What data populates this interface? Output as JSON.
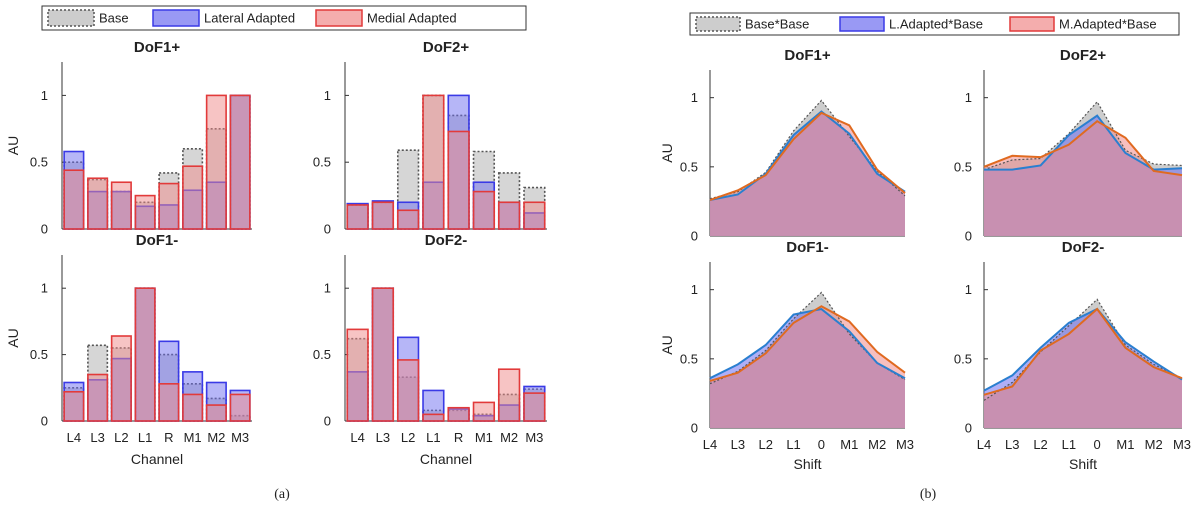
{
  "colors": {
    "base_fill": "#c8c8c8",
    "base_edge": "#555555",
    "lateral_fill": "#6e6ef0",
    "lateral_edge": "#3a3ae6",
    "medial_fill": "#f08a8a",
    "medial_edge": "#e23a3a",
    "overlap_fill": "#9a5a8e",
    "lateral_line": "#2a7fd0",
    "medial_line": "#e06a20"
  },
  "chart_data": [
    {
      "panel": "a",
      "caption": "(a)",
      "type": "bar",
      "legend": [
        "Base",
        "Lateral Adapted",
        "Medial Adapted"
      ],
      "legend_position": "top",
      "categories": [
        "L4",
        "L3",
        "L2",
        "L1",
        "R",
        "M1",
        "M2",
        "M3"
      ],
      "y_ticks": [
        "0",
        "0.5",
        "1"
      ],
      "ylim": [
        0,
        1.25
      ],
      "subplots": [
        {
          "title": "DoF1+",
          "ylabel": "AU",
          "xlabel": "",
          "series": [
            {
              "name": "Base",
              "values": [
                0.5,
                0.37,
                0.28,
                0.2,
                0.42,
                0.6,
                0.75,
                1.0
              ]
            },
            {
              "name": "Lateral Adapted",
              "values": [
                0.58,
                0.28,
                0.28,
                0.17,
                0.18,
                0.29,
                0.35,
                1.0
              ]
            },
            {
              "name": "Medial Adapted",
              "values": [
                0.44,
                0.38,
                0.35,
                0.25,
                0.34,
                0.47,
                1.0,
                1.0
              ]
            }
          ]
        },
        {
          "title": "DoF2+",
          "ylabel": "",
          "xlabel": "",
          "series": [
            {
              "name": "Base",
              "values": [
                0.18,
                0.2,
                0.59,
                1.0,
                0.85,
                0.58,
                0.42,
                0.31
              ]
            },
            {
              "name": "Lateral Adapted",
              "values": [
                0.19,
                0.21,
                0.2,
                0.35,
                1.0,
                0.35,
                0.2,
                0.12
              ]
            },
            {
              "name": "Medial Adapted",
              "values": [
                0.18,
                0.2,
                0.14,
                1.0,
                0.73,
                0.28,
                0.2,
                0.2
              ]
            }
          ]
        },
        {
          "title": "DoF1-",
          "ylabel": "AU",
          "xlabel": "Channel",
          "series": [
            {
              "name": "Base",
              "values": [
                0.25,
                0.57,
                0.55,
                1.0,
                0.5,
                0.28,
                0.17,
                0.04
              ]
            },
            {
              "name": "Lateral Adapted",
              "values": [
                0.29,
                0.31,
                0.47,
                1.0,
                0.6,
                0.37,
                0.29,
                0.23
              ]
            },
            {
              "name": "Medial Adapted",
              "values": [
                0.22,
                0.35,
                0.64,
                1.0,
                0.28,
                0.2,
                0.12,
                0.2
              ]
            }
          ]
        },
        {
          "title": "DoF2-",
          "ylabel": "",
          "xlabel": "Channel",
          "series": [
            {
              "name": "Base",
              "values": [
                0.62,
                1.0,
                0.33,
                0.08,
                0.08,
                0.05,
                0.2,
                0.24
              ]
            },
            {
              "name": "Lateral Adapted",
              "values": [
                0.37,
                1.0,
                0.63,
                0.23,
                0.09,
                0.04,
                0.12,
                0.26
              ]
            },
            {
              "name": "Medial Adapted",
              "values": [
                0.69,
                1.0,
                0.46,
                0.05,
                0.1,
                0.14,
                0.39,
                0.21
              ]
            }
          ]
        }
      ]
    },
    {
      "panel": "b",
      "caption": "(b)",
      "type": "area",
      "legend": [
        "Base*Base",
        "L.Adapted*Base",
        "M.Adapted*Base"
      ],
      "legend_position": "top",
      "categories": [
        "L4",
        "L3",
        "L2",
        "L1",
        "0",
        "M1",
        "M2",
        "M3"
      ],
      "y_ticks": [
        "0",
        "0.5",
        "1"
      ],
      "ylim": [
        0,
        1.2
      ],
      "subplots": [
        {
          "title": "DoF1+",
          "ylabel": "AU",
          "xlabel": "",
          "series": [
            {
              "name": "Base*Base",
              "values": [
                0.27,
                0.32,
                0.46,
                0.76,
                0.98,
                0.72,
                0.47,
                0.29
              ]
            },
            {
              "name": "L.Adapted*Base",
              "values": [
                0.26,
                0.3,
                0.45,
                0.73,
                0.9,
                0.74,
                0.45,
                0.32
              ]
            },
            {
              "name": "M.Adapted*Base",
              "values": [
                0.26,
                0.33,
                0.44,
                0.7,
                0.89,
                0.8,
                0.48,
                0.31
              ]
            }
          ]
        },
        {
          "title": "DoF2+",
          "ylabel": "",
          "xlabel": "",
          "series": [
            {
              "name": "Base*Base",
              "values": [
                0.48,
                0.55,
                0.56,
                0.74,
                0.97,
                0.62,
                0.52,
                0.51
              ]
            },
            {
              "name": "L.Adapted*Base",
              "values": [
                0.48,
                0.48,
                0.51,
                0.73,
                0.87,
                0.6,
                0.48,
                0.49
              ]
            },
            {
              "name": "M.Adapted*Base",
              "values": [
                0.5,
                0.58,
                0.57,
                0.66,
                0.83,
                0.71,
                0.47,
                0.44
              ]
            }
          ]
        },
        {
          "title": "DoF1-",
          "ylabel": "AU",
          "xlabel": "Shift",
          "series": [
            {
              "name": "Base*Base",
              "values": [
                0.32,
                0.41,
                0.56,
                0.79,
                0.98,
                0.68,
                0.47,
                0.35
              ]
            },
            {
              "name": "L.Adapted*Base",
              "values": [
                0.36,
                0.46,
                0.6,
                0.82,
                0.86,
                0.7,
                0.47,
                0.36
              ]
            },
            {
              "name": "M.Adapted*Base",
              "values": [
                0.34,
                0.4,
                0.54,
                0.76,
                0.88,
                0.77,
                0.55,
                0.4
              ]
            }
          ]
        },
        {
          "title": "DoF2-",
          "ylabel": "",
          "xlabel": "Shift",
          "series": [
            {
              "name": "Base*Base",
              "values": [
                0.2,
                0.33,
                0.55,
                0.74,
                0.93,
                0.6,
                0.46,
                0.36
              ]
            },
            {
              "name": "L.Adapted*Base",
              "values": [
                0.27,
                0.38,
                0.58,
                0.76,
                0.86,
                0.62,
                0.48,
                0.35
              ]
            },
            {
              "name": "M.Adapted*Base",
              "values": [
                0.24,
                0.3,
                0.56,
                0.68,
                0.86,
                0.58,
                0.44,
                0.36
              ]
            }
          ]
        }
      ]
    }
  ]
}
